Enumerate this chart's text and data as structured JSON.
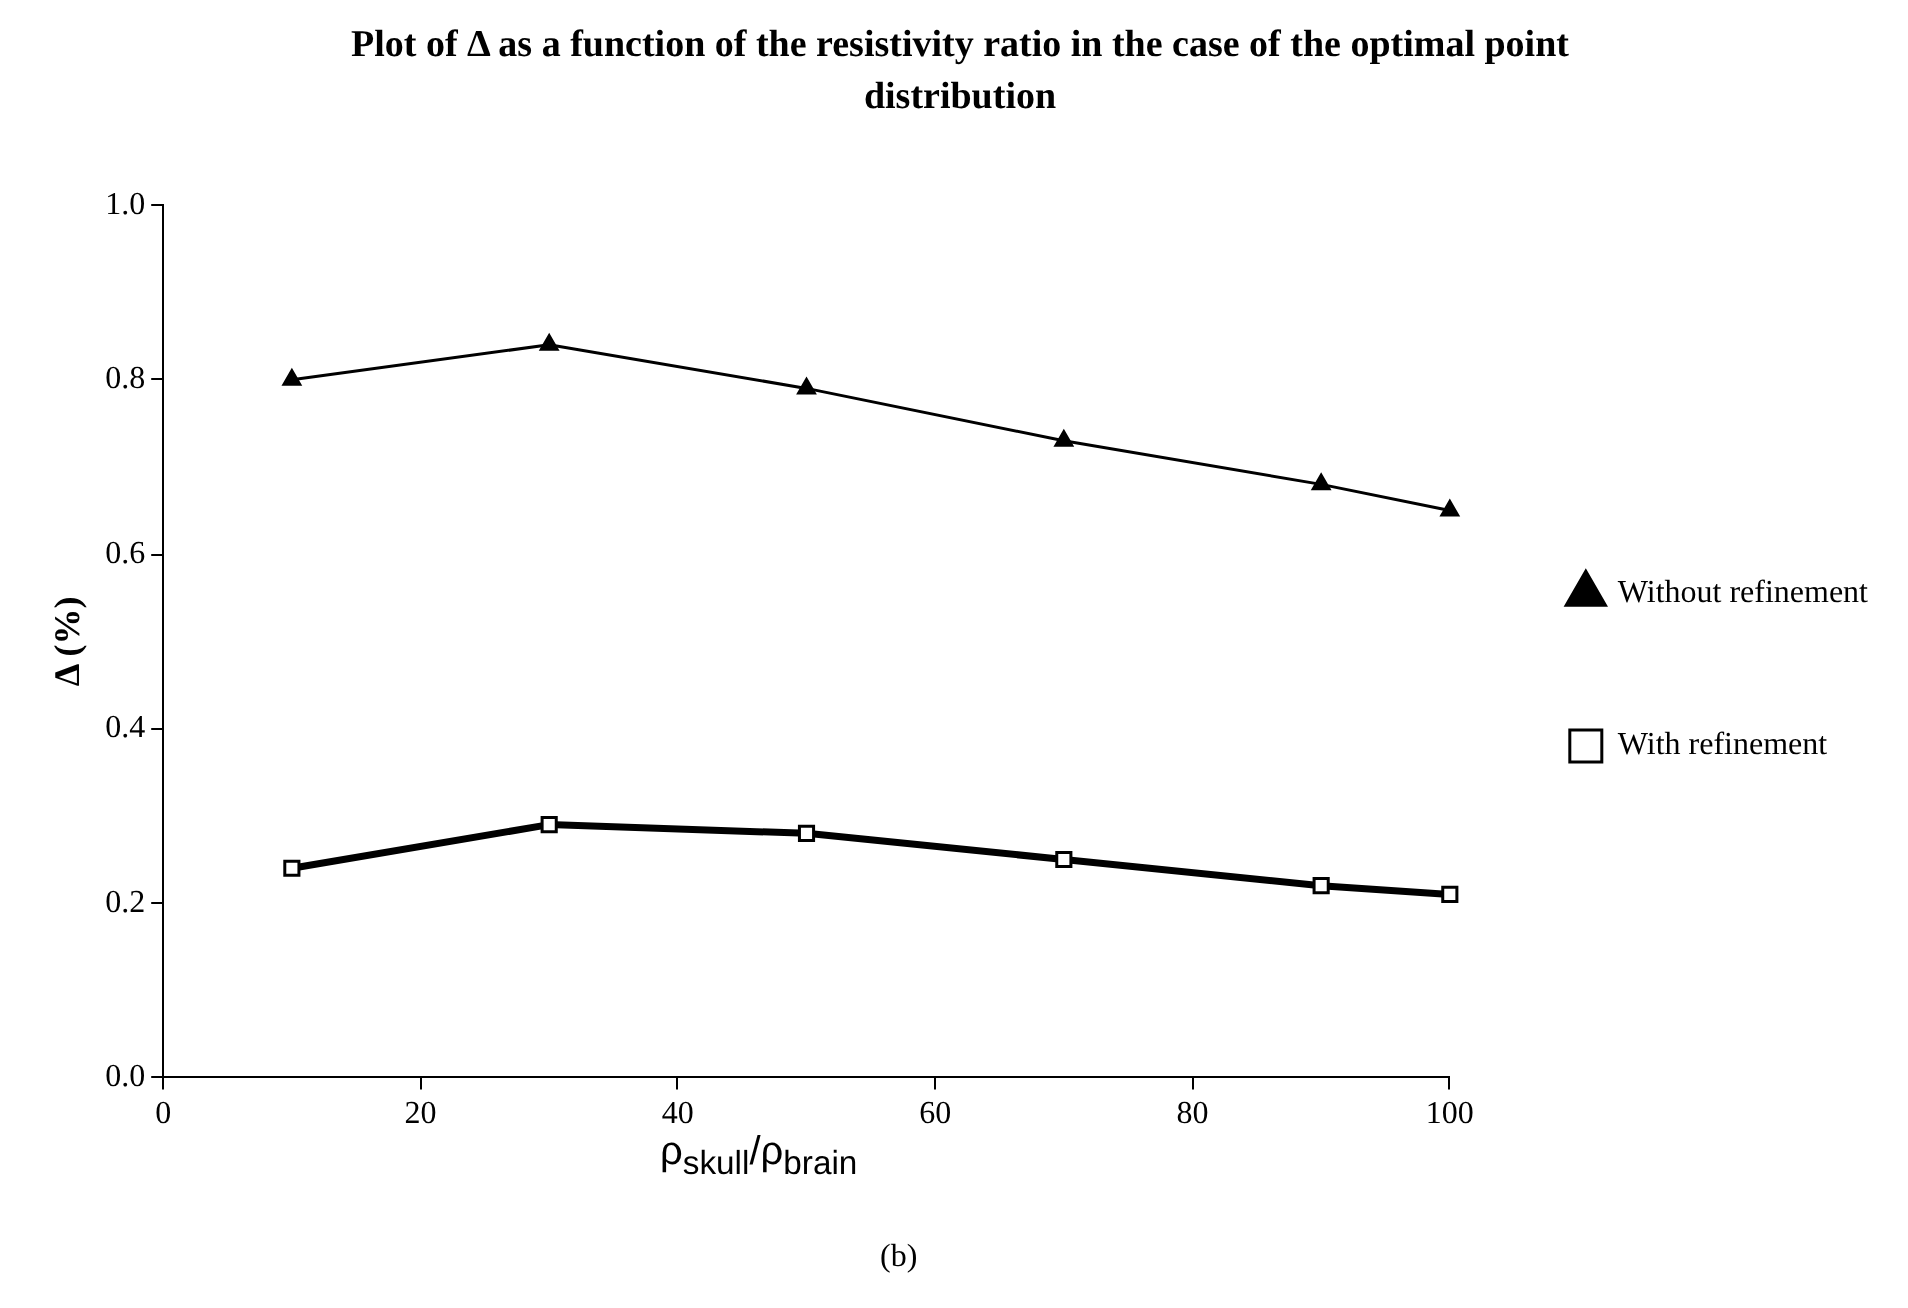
{
  "chart_data": {
    "type": "line",
    "title": "Plot of Δ as a function of the resistivity ratio in the case of the optimal point distribution",
    "xlabel": "ρ$_{skull}$/ρ$_{brain}$",
    "ylabel": "Δ (%)",
    "annotations": [
      "(b)"
    ],
    "x": [
      10,
      30,
      50,
      70,
      90,
      100
    ],
    "series": [
      {
        "name": "Without refinement",
        "color": "#000000",
        "marker": "triangle",
        "values": [
          0.8,
          0.84,
          0.79,
          0.73,
          0.68,
          0.65
        ]
      },
      {
        "name": "With refinement",
        "color": "#000000",
        "marker": "square",
        "values": [
          0.24,
          0.29,
          0.28,
          0.25,
          0.22,
          0.21
        ]
      }
    ],
    "xlim": [
      0,
      100
    ],
    "xticks": [
      0,
      20,
      40,
      60,
      80,
      100
    ],
    "ylim": [
      0,
      1
    ],
    "yticks": [
      {
        "value": 0,
        "label": "0.0"
      },
      0.2,
      0.4,
      0.6,
      0.8,
      {
        "value": 1,
        "label": "1.0"
      }
    ],
    "grid": false,
    "legend": "right"
  }
}
